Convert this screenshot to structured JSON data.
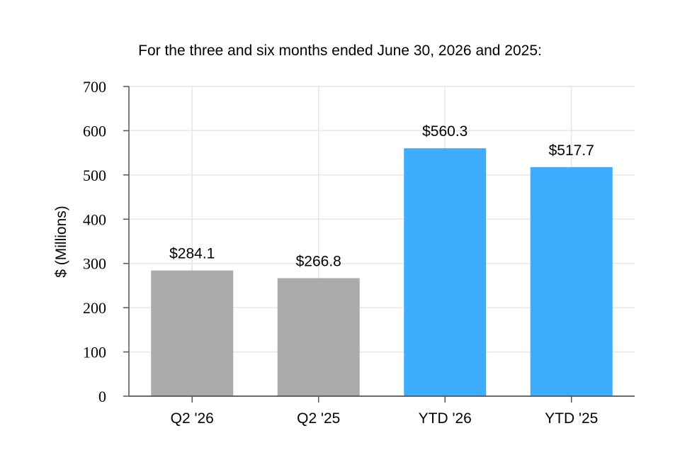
{
  "chart_data": {
    "type": "bar",
    "title": "For the three and six months ended June 30, 2026 and 2025:",
    "xlabel": "",
    "ylabel": "$ (Millions)",
    "categories": [
      "Q2 '26",
      "Q2 '25",
      "YTD '26",
      "YTD '25"
    ],
    "values": [
      284.1,
      266.8,
      560.3,
      517.7
    ],
    "data_labels": [
      "$284.1",
      "$266.8",
      "$560.3",
      "$517.7"
    ],
    "bar_colors": [
      "#aaaaaa",
      "#aaaaaa",
      "#3fadfd",
      "#3fadfd"
    ],
    "ylim": [
      0,
      700
    ],
    "yticks": [
      0,
      100,
      200,
      300,
      400,
      500,
      600,
      700
    ],
    "grid": true,
    "legend": "none"
  }
}
